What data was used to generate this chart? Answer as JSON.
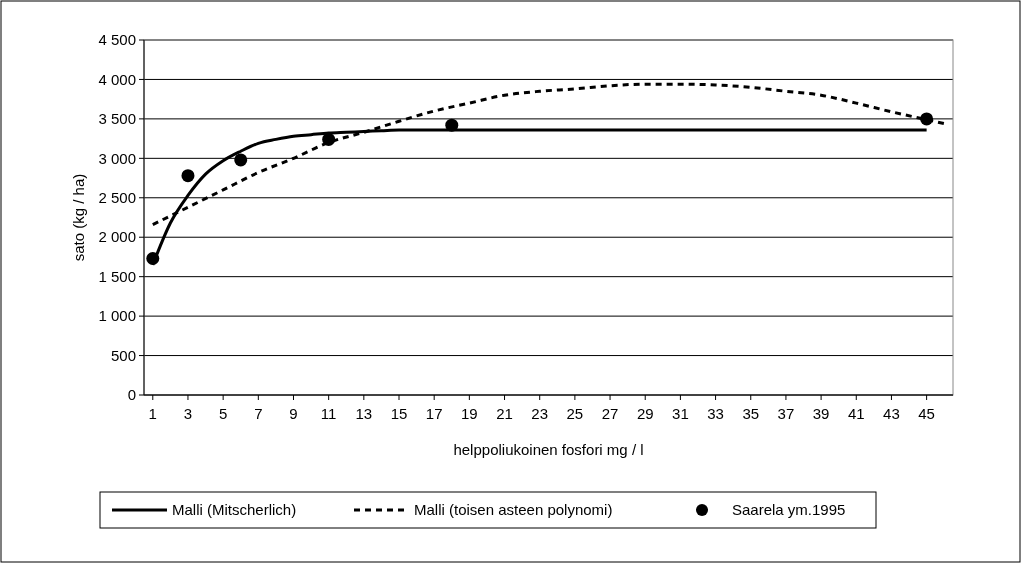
{
  "chart_data": {
    "type": "line",
    "xlabel": "helppoliukoinen fosfori mg / l",
    "ylabel": "sato (kg / ha)",
    "xlim": [
      0.5,
      46.5
    ],
    "xticks": [
      1,
      3,
      5,
      7,
      9,
      11,
      13,
      15,
      17,
      19,
      21,
      23,
      25,
      27,
      29,
      31,
      33,
      35,
      37,
      39,
      41,
      43,
      45
    ],
    "ylim": [
      0,
      4500
    ],
    "yticks": [
      {
        "value": 0,
        "label": "0"
      },
      {
        "value": 500,
        "label": "500"
      },
      {
        "value": 1000,
        "label": "1 000"
      },
      {
        "value": 1500,
        "label": "1 500"
      },
      {
        "value": 2000,
        "label": "2 000"
      },
      {
        "value": 2500,
        "label": "2 500"
      },
      {
        "value": 3000,
        "label": "3 000"
      },
      {
        "value": 3500,
        "label": "3 500"
      },
      {
        "value": 4000,
        "label": "4 000"
      },
      {
        "value": 4500,
        "label": "4 500"
      }
    ],
    "grid": "y",
    "legend": "bottom",
    "series": [
      {
        "name": "Malli (Mitscherlich)",
        "line_style": "solid",
        "color": "#000000",
        "x": [
          1,
          2,
          3,
          4,
          5,
          6,
          7,
          8,
          9,
          10,
          11,
          12,
          13,
          14,
          15,
          20,
          25,
          30,
          35,
          40,
          45
        ],
        "values": [
          1650,
          2180,
          2530,
          2800,
          2970,
          3090,
          3190,
          3240,
          3280,
          3300,
          3320,
          3330,
          3340,
          3350,
          3360,
          3360,
          3360,
          3360,
          3360,
          3360,
          3360
        ]
      },
      {
        "name": "Malli (toisen asteen polynomi)",
        "line_style": "dashed",
        "color": "#000000",
        "x": [
          1,
          3,
          5,
          7,
          9,
          11,
          13,
          15,
          17,
          19,
          21,
          23,
          25,
          27,
          29,
          31,
          33,
          35,
          37,
          39,
          41,
          43,
          45,
          46
        ],
        "values": [
          2160,
          2380,
          2600,
          2820,
          3000,
          3200,
          3330,
          3470,
          3600,
          3700,
          3800,
          3850,
          3880,
          3920,
          3940,
          3940,
          3930,
          3900,
          3850,
          3800,
          3700,
          3590,
          3490,
          3440
        ]
      },
      {
        "name": "Saarela ym.1995",
        "type": "scatter",
        "marker": "circle",
        "color": "#000000",
        "x": [
          1,
          3,
          6,
          11,
          18,
          45
        ],
        "values": [
          1730,
          2780,
          2980,
          3240,
          3420,
          3500
        ]
      }
    ]
  }
}
